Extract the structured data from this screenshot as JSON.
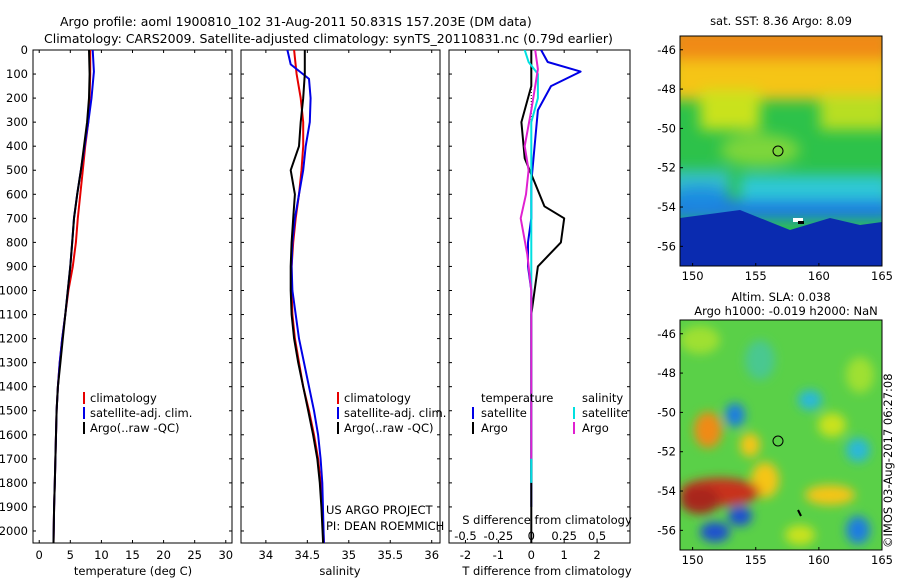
{
  "header": {
    "line1": "Argo profile: aoml 1900810_102 31-Aug-2011 50.831S 157.203E (DM data)",
    "line2": "Climatology: CARS2009. Satellite-adjusted climatology: synTS_20110831.nc (0.79d earlier)"
  },
  "colors": {
    "climatology": "#e60000",
    "satellite": "#0000e6",
    "argo": "#000000",
    "argo_salinity": "#e020d0",
    "satellite_salinity": "#00e0e0"
  },
  "depth_ticks": [
    "0",
    "100",
    "200",
    "300",
    "400",
    "500",
    "600",
    "700",
    "800",
    "900",
    "1000",
    "1100",
    "1200",
    "1300",
    "1400",
    "1500",
    "1600",
    "1700",
    "1800",
    "1900",
    "2000"
  ],
  "chart_data": [
    {
      "type": "line",
      "xlabel": "temperature (deg C)",
      "xlim": [
        -1,
        31
      ],
      "ylim": [
        2050,
        0
      ],
      "xticks": [
        "0",
        "5",
        "10",
        "15",
        "20",
        "25",
        "30"
      ],
      "legend": [
        "climatology",
        "satellite-adj. clim.",
        "Argo(..raw -QC)"
      ],
      "series": [
        {
          "name": "climatology",
          "x": [
            8.2,
            8.2,
            8.1,
            7.9,
            7.4,
            7.0,
            6.6,
            6.2,
            5.9,
            5.4,
            4.7,
            4.2,
            3.7,
            3.3,
            3.0,
            2.8,
            2.7,
            2.6,
            2.5,
            2.4,
            2.3
          ],
          "y": [
            0,
            100,
            200,
            300,
            400,
            500,
            600,
            700,
            800,
            900,
            1000,
            1100,
            1200,
            1300,
            1400,
            1500,
            1600,
            1700,
            1800,
            1900,
            2050
          ]
        },
        {
          "name": "satellite-adj. clim.",
          "x": [
            8.6,
            8.8,
            8.4,
            7.9,
            7.3,
            6.7,
            6.1,
            5.6,
            5.3,
            5.0,
            4.6,
            4.2,
            3.7,
            3.3,
            3.0,
            2.8,
            2.7,
            2.6,
            2.5,
            2.4,
            2.3
          ],
          "y": [
            0,
            90,
            200,
            300,
            400,
            500,
            600,
            700,
            800,
            900,
            1000,
            1100,
            1200,
            1300,
            1400,
            1500,
            1600,
            1700,
            1800,
            1900,
            2050
          ]
        },
        {
          "name": "Argo(..raw -QC)",
          "x": [
            8.0,
            8.1,
            8.0,
            7.7,
            7.2,
            6.7,
            6.1,
            5.6,
            5.3,
            5.0,
            4.6,
            4.2,
            3.8,
            3.4,
            3.0,
            2.8,
            2.7,
            2.6,
            2.5,
            2.4,
            2.3
          ],
          "y": [
            0,
            100,
            200,
            300,
            400,
            500,
            600,
            700,
            800,
            900,
            1000,
            1100,
            1200,
            1300,
            1400,
            1500,
            1600,
            1700,
            1800,
            1900,
            2050
          ]
        }
      ]
    },
    {
      "type": "line",
      "xlabel": "salinity",
      "xlim": [
        33.7,
        36.1
      ],
      "ylim": [
        2050,
        0
      ],
      "xticks": [
        "34",
        "34.5",
        "35",
        "35.5",
        "36"
      ],
      "legend": [
        "climatology",
        "satellite-adj. clim.",
        "Argo(..raw -QC)"
      ],
      "annotation": [
        "US ARGO PROJECT",
        "PI: DEAN ROEMMICH"
      ],
      "series": [
        {
          "name": "climatology",
          "x": [
            34.34,
            34.37,
            34.42,
            34.45,
            34.45,
            34.43,
            34.4,
            34.36,
            34.33,
            34.31,
            34.31,
            34.32,
            34.35,
            34.4,
            34.45,
            34.52,
            34.58,
            34.63,
            34.66,
            34.68,
            34.7
          ],
          "y": [
            0,
            100,
            200,
            300,
            400,
            500,
            600,
            700,
            800,
            900,
            1000,
            1100,
            1200,
            1300,
            1400,
            1500,
            1600,
            1700,
            1800,
            1900,
            2050
          ]
        },
        {
          "name": "satellite-adj. clim.",
          "x": [
            34.26,
            34.3,
            34.52,
            34.54,
            34.53,
            34.48,
            34.45,
            34.4,
            34.35,
            34.32,
            34.31,
            34.32,
            34.36,
            34.4,
            34.46,
            34.52,
            34.58,
            34.63,
            34.66,
            34.68,
            34.7
          ],
          "y": [
            0,
            60,
            120,
            200,
            300,
            400,
            500,
            600,
            700,
            800,
            900,
            1000,
            1100,
            1200,
            1300,
            1400,
            1500,
            1600,
            1700,
            1800,
            2050
          ]
        },
        {
          "name": "Argo(..raw -QC)",
          "x": [
            34.47,
            34.47,
            34.45,
            34.42,
            34.4,
            34.3,
            34.35,
            34.33,
            34.31,
            34.3,
            34.3,
            34.31,
            34.34,
            34.39,
            34.45,
            34.51,
            34.57,
            34.62,
            34.65,
            34.67,
            34.69
          ],
          "y": [
            0,
            100,
            200,
            300,
            400,
            500,
            600,
            700,
            800,
            900,
            1000,
            1100,
            1200,
            1300,
            1400,
            1500,
            1600,
            1700,
            1800,
            1900,
            2050
          ]
        }
      ]
    },
    {
      "type": "line",
      "xlabel": "T difference from climatology",
      "xlabel2": "S difference from climatology",
      "xlim": [
        -2.5,
        3.0
      ],
      "ylim": [
        2050,
        0
      ],
      "xticks": [
        "-2",
        "-1",
        "0",
        "1",
        "2"
      ],
      "xticks2": [
        "-0.5",
        "-0.25",
        "0",
        "0.25",
        "0.5"
      ],
      "legend_temperature": {
        "title": "temperature",
        "items": [
          "satellite",
          "Argo"
        ]
      },
      "legend_salinity": {
        "title": "salinity",
        "items": [
          "satellite",
          "Argo"
        ]
      },
      "series": [
        {
          "name": "temperature satellite",
          "x": [
            0.3,
            0.5,
            1.5,
            0.6,
            0.2,
            0.1,
            0.0,
            0.0,
            -0.1,
            -0.1,
            0.0,
            0.0,
            0.0,
            0.0,
            0.0,
            0.0,
            0.0,
            0.0,
            0.0,
            0.0
          ],
          "y": [
            0,
            50,
            90,
            150,
            250,
            400,
            550,
            700,
            800,
            900,
            1000,
            1100,
            1200,
            1300,
            1400,
            1500,
            1600,
            1700,
            1800,
            1900
          ]
        },
        {
          "name": "temperature Argo",
          "x": [
            0.0,
            0.0,
            -0.3,
            -0.2,
            0.1,
            0.4,
            1.0,
            0.9,
            0.2,
            0.1,
            0.0,
            0.0,
            0.0,
            0.0,
            0.0,
            0.0,
            0.0,
            0.0,
            0.0,
            0.0
          ],
          "y": [
            0,
            150,
            300,
            450,
            550,
            650,
            700,
            800,
            900,
            1000,
            1100,
            1200,
            1300,
            1400,
            1500,
            1600,
            1700,
            1800,
            1900,
            2050
          ]
        },
        {
          "name": "salinity satellite",
          "x": [
            -0.05,
            -0.02,
            0.05,
            0.05,
            0.0,
            0.0,
            0.0,
            0.0,
            0.0,
            0.0,
            0.0,
            0.0,
            0.0,
            0.0,
            0.0,
            0.0,
            0.0,
            0.0,
            0.0,
            0.0
          ],
          "y": [
            0,
            50,
            100,
            200,
            300,
            400,
            500,
            600,
            700,
            800,
            900,
            1000,
            1100,
            1200,
            1300,
            1400,
            1500,
            1600,
            1700,
            1800
          ]
        },
        {
          "name": "salinity Argo",
          "x": [
            0.03,
            0.05,
            0.03,
            0.0,
            -0.05,
            -0.02,
            -0.04,
            -0.08,
            -0.03,
            0.0,
            0.0,
            0.0,
            0.0,
            0.0,
            0.0,
            0.0,
            0.0
          ],
          "y": [
            0,
            80,
            150,
            250,
            400,
            500,
            600,
            700,
            850,
            1000,
            1100,
            1200,
            1300,
            1400,
            1500,
            1600,
            1700
          ]
        }
      ]
    }
  ],
  "maps": [
    {
      "title": "sat. SST: 8.36 Argo: 8.09",
      "xticks": [
        "150",
        "155",
        "160",
        "165"
      ],
      "yticks": [
        "-46",
        "-48",
        "-50",
        "-52",
        "-54",
        "-56"
      ]
    },
    {
      "title_line1": "Altim. SLA: 0.038",
      "title_line2": "Argo h1000: -0.019 h2000: NaN",
      "xticks": [
        "150",
        "155",
        "160",
        "165"
      ],
      "yticks": [
        "-46",
        "-48",
        "-50",
        "-52",
        "-54",
        "-56"
      ]
    }
  ],
  "credit": "©IMOS 03-Aug-2017 06:27:08"
}
